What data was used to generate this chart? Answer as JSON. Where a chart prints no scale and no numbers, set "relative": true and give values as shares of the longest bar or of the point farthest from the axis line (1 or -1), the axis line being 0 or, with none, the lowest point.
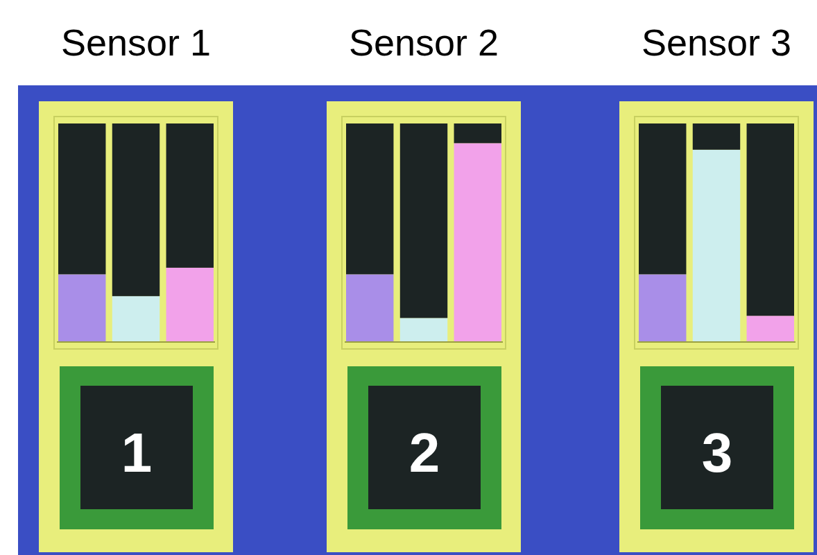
{
  "chart_data": [
    {
      "type": "bar",
      "title": "Sensor 1",
      "categories": [
        null,
        null,
        null
      ],
      "stacked": true,
      "relative": true,
      "annotations": [
        "1"
      ],
      "series": [
        {
          "colors": [
            "#a98ee8",
            "#cdeeee",
            "#f2a2ea"
          ],
          "values": [
            0.31,
            0.21,
            0.34
          ]
        },
        {
          "color": "#1c2424",
          "values": [
            0.69,
            0.79,
            0.66
          ]
        }
      ]
    },
    {
      "type": "bar",
      "title": "Sensor 2",
      "categories": [
        null,
        null,
        null
      ],
      "stacked": true,
      "relative": true,
      "annotations": [
        "2"
      ],
      "series": [
        {
          "colors": [
            "#a98ee8",
            "#cdeeee",
            "#f2a2ea"
          ],
          "values": [
            0.31,
            0.11,
            0.91
          ]
        },
        {
          "color": "#1c2424",
          "values": [
            0.69,
            0.89,
            0.09
          ]
        }
      ]
    },
    {
      "type": "bar",
      "title": "Sensor 3",
      "categories": [
        null,
        null,
        null
      ],
      "stacked": true,
      "relative": true,
      "annotations": [
        "3"
      ],
      "series": [
        {
          "colors": [
            "#a98ee8",
            "#cdeeee",
            "#f2a2ea"
          ],
          "values": [
            0.31,
            0.88,
            0.12
          ]
        },
        {
          "color": "#1c2424",
          "values": [
            0.69,
            0.12,
            0.88
          ]
        }
      ]
    }
  ]
}
